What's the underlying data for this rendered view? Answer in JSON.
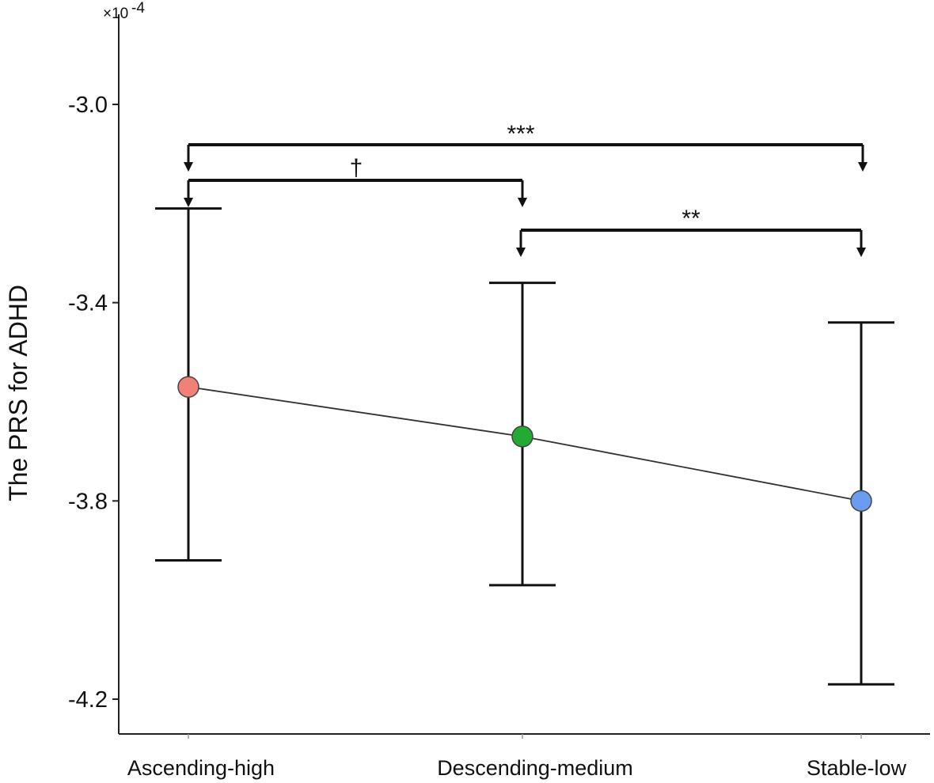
{
  "chart_data": {
    "type": "line",
    "title": "",
    "xlabel": "",
    "ylabel": "The PRS for ADHD",
    "y_multiplier_label": "×10",
    "y_multiplier_exponent": "-4",
    "ylim": [
      -4.27,
      -2.82
    ],
    "yticks": [
      -3.0,
      -3.4,
      -3.8,
      -4.2
    ],
    "ytick_labels": [
      "-3.0",
      "-3.4",
      "-3.8",
      "-4.2"
    ],
    "grid": false,
    "categories": [
      "Ascending-high",
      "Descending-medium",
      "Stable-low"
    ],
    "series": [
      {
        "values": [
          -3.57,
          -3.67,
          -3.8
        ],
        "error_upper": [
          -3.21,
          -3.36,
          -3.44
        ],
        "error_lower": [
          -3.92,
          -3.97,
          -4.17
        ],
        "marker_colors": [
          "#f08078",
          "#22aa33",
          "#6a9cf0"
        ],
        "line_color": "#333333"
      }
    ],
    "significance": [
      {
        "from": 0,
        "to": 2,
        "label": "***"
      },
      {
        "from": 0,
        "to": 1,
        "label": "†"
      },
      {
        "from": 1,
        "to": 2,
        "label": "**"
      }
    ]
  }
}
